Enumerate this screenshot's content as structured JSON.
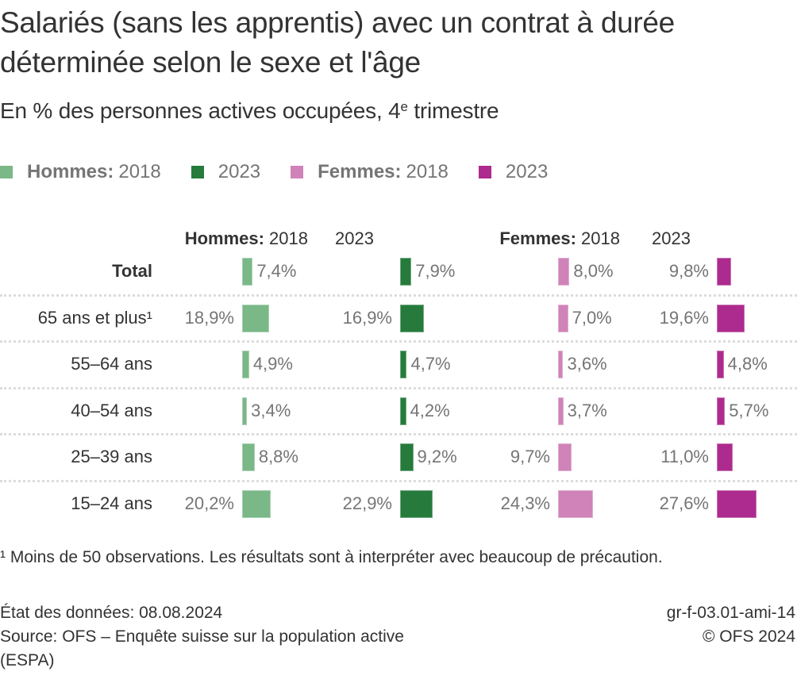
{
  "title_line1": "Salariés (sans les apprentis) avec un contrat à durée",
  "title_line2": "déterminée selon le sexe et l'âge",
  "subtitle_pre": "En % des personnes actives occupées, 4",
  "subtitle_sup": "e",
  "subtitle_post": " trimestre",
  "legend": [
    {
      "group": "Hommes:",
      "year": "2018",
      "color": "#7ab887"
    },
    {
      "group": "",
      "year": "2023",
      "color": "#267b3c"
    },
    {
      "group": "Femmes:",
      "year": "2018",
      "color": "#d083b8"
    },
    {
      "group": "",
      "year": "2023",
      "color": "#ad2a8e"
    }
  ],
  "chart_data": {
    "type": "bar",
    "title": "Salariés (sans les apprentis) avec un contrat à durée déterminée selon le sexe et l'âge",
    "subtitle": "En % des personnes actives occupées, 4e trimestre",
    "xlabel": "",
    "ylabel": "",
    "unit": "%",
    "categories": [
      "Total",
      "65 ans et plus¹",
      "55–64 ans",
      "40–54 ans",
      "25–39 ans",
      "15–24 ans"
    ],
    "series": [
      {
        "name": "Hommes: 2018",
        "header_group": "Hommes:",
        "header_year": "2018",
        "color": "#7ab887",
        "values": [
          7.4,
          18.9,
          4.9,
          3.4,
          8.8,
          20.2
        ],
        "labels": [
          "7,4%",
          "18,9%",
          "4,9%",
          "3,4%",
          "8,8%",
          "20,2%"
        ],
        "label_side": [
          "right",
          "left",
          "right",
          "right",
          "right",
          "left"
        ]
      },
      {
        "name": "Hommes: 2023",
        "header_group": "",
        "header_year": "2023",
        "color": "#267b3c",
        "values": [
          7.9,
          16.9,
          4.7,
          4.2,
          9.2,
          22.9
        ],
        "labels": [
          "7,9%",
          "16,9%",
          "4,7%",
          "4,2%",
          "9,2%",
          "22,9%"
        ],
        "label_side": [
          "right",
          "left",
          "right",
          "right",
          "right",
          "left"
        ]
      },
      {
        "name": "Femmes: 2018",
        "header_group": "Femmes:",
        "header_year": "2018",
        "color": "#d083b8",
        "values": [
          8.0,
          7.0,
          3.6,
          3.7,
          9.7,
          24.3
        ],
        "labels": [
          "8,0%",
          "7,0%",
          "3,6%",
          "3,7%",
          "9,7%",
          "24,3%"
        ],
        "label_side": [
          "right",
          "right",
          "right",
          "right",
          "left",
          "left"
        ]
      },
      {
        "name": "Femmes: 2023",
        "header_group": "",
        "header_year": "2023",
        "color": "#ad2a8e",
        "values": [
          9.8,
          19.6,
          4.8,
          5.7,
          11.0,
          27.6
        ],
        "labels": [
          "9,8%",
          "19,6%",
          "4,8%",
          "5,7%",
          "11,0%",
          "27,6%"
        ],
        "label_side": [
          "left",
          "left",
          "right",
          "right",
          "left",
          "left"
        ]
      }
    ],
    "legend_position": "top-left",
    "grid": false
  },
  "footnote": "¹ Moins de 50 observations. Les résultats sont à interpréter avec beaucoup de précaution.",
  "footer": {
    "data_status": "État des données: 08.08.2024",
    "source_line1": "Source: OFS – Enquête suisse sur la population active",
    "source_line2": "(ESPA)",
    "chart_id": "gr-f-03.01-ami-14",
    "copyright": "© OFS 2024"
  }
}
